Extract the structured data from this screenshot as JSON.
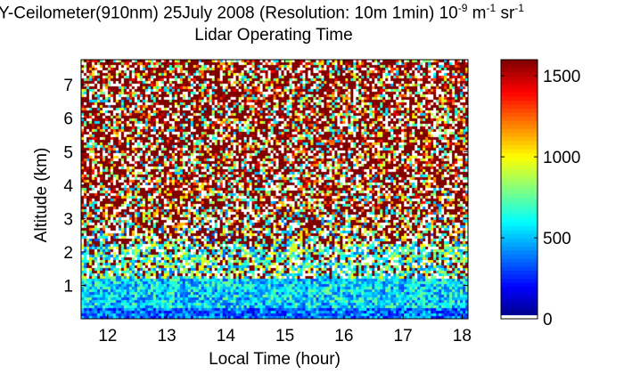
{
  "chart_data": {
    "type": "heatmap",
    "title_line1": "Y-Ceilometer(910nm) 25July 2008 (Resolution: 10m 1min) 10",
    "title_exp1": "-9",
    "title_unit1": " m",
    "title_exp2": "-1",
    "title_unit2": " sr",
    "title_exp3": "-1",
    "title_line2": "Lidar Operating Time",
    "xlabel": "Local Time (hour)",
    "ylabel": "Altitude (km)",
    "xlim": [
      11.55,
      18.1
    ],
    "ylim": [
      0,
      7.75
    ],
    "x_ticks": [
      12,
      13,
      14,
      15,
      16,
      17,
      18
    ],
    "y_ticks": [
      1,
      2,
      3,
      4,
      5,
      6,
      7
    ],
    "colorbar": {
      "range": [
        0,
        1600
      ],
      "ticks": [
        0,
        500,
        1000,
        1500
      ],
      "colormap": "jet"
    },
    "profile_description": [
      {
        "altitude_km": 0.2,
        "typical_value": 600
      },
      {
        "altitude_km": 0.8,
        "typical_value": 520
      },
      {
        "altitude_km": 1.5,
        "typical_value": 650
      },
      {
        "altitude_km": 2.5,
        "typical_value": 1100
      },
      {
        "altitude_km": 4.0,
        "typical_value": 1450
      },
      {
        "altitude_km": 7.0,
        "typical_value": 1550
      }
    ]
  }
}
